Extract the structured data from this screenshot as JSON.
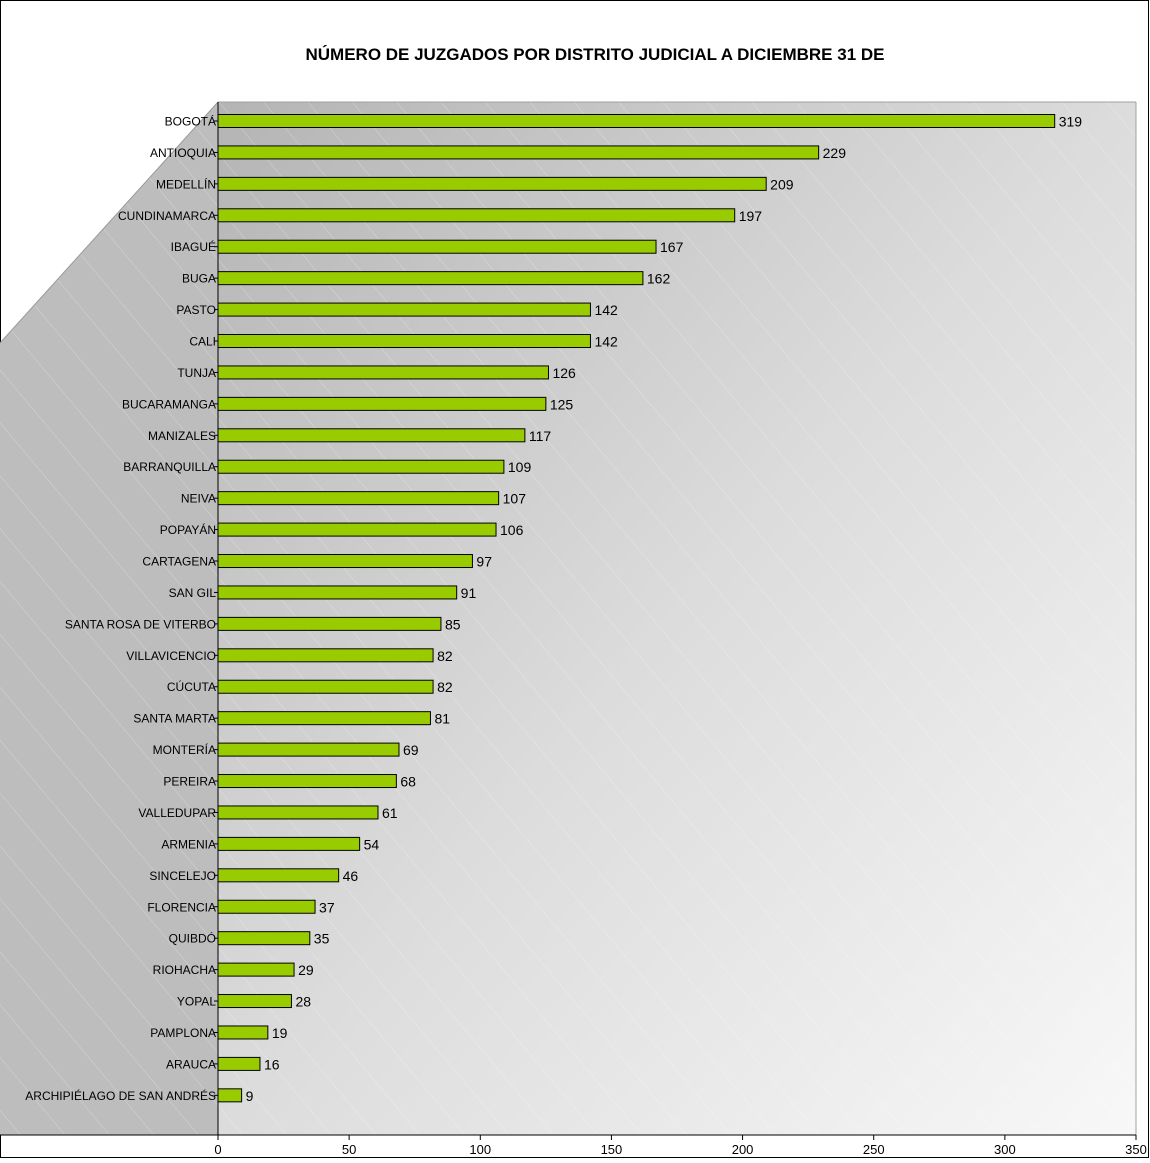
{
  "chart_data": {
    "type": "bar",
    "orientation": "horizontal",
    "title": "NÚMERO DE JUZGADOS POR DISTRITO JUDICIAL A DICIEMBRE 31 DE",
    "xlabel": "",
    "ylabel": "",
    "xlim": [
      0,
      350
    ],
    "x_ticks": [
      0,
      50,
      100,
      150,
      200,
      250,
      300,
      350
    ],
    "grid": false,
    "legend": "none",
    "bar_color": "#99cc00",
    "categories": [
      "BOGOTÁ",
      "ANTIOQUIA",
      "MEDELLÍN",
      "CUNDINAMARCA",
      "IBAGUÉ",
      "BUGA",
      "PASTO",
      "CALI",
      "TUNJA",
      "BUCARAMANGA",
      "MANIZALES",
      "BARRANQUILLA",
      "NEIVA",
      "POPAYÁN",
      "CARTAGENA",
      "SAN GIL",
      "SANTA ROSA DE VITERBO",
      "VILLAVICENCIO",
      "CÚCUTA",
      "SANTA MARTA",
      "MONTERÍA",
      "PEREIRA",
      "VALLEDUPAR",
      "ARMENIA",
      "SINCELEJO",
      "FLORENCIA",
      "QUIBDÓ",
      "RIOHACHA",
      "YOPAL",
      "PAMPLONA",
      "ARAUCA",
      "ARCHIPIÉLAGO DE SAN ANDRÉS"
    ],
    "values": [
      319,
      229,
      209,
      197,
      167,
      162,
      142,
      142,
      126,
      125,
      117,
      109,
      107,
      106,
      97,
      91,
      85,
      82,
      82,
      81,
      69,
      68,
      61,
      54,
      46,
      37,
      35,
      29,
      28,
      19,
      16,
      9
    ]
  }
}
